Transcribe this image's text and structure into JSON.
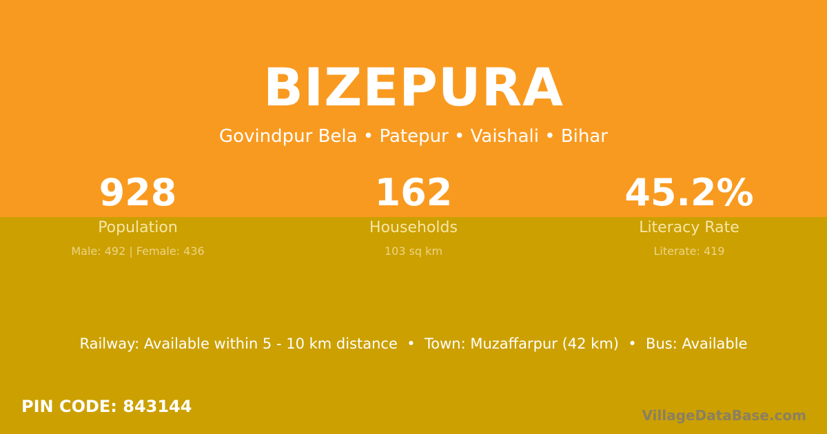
{
  "colors": {
    "top_bg": "#F99A20",
    "bottom_bg": "#CCA000"
  },
  "title": "BIZEPURA",
  "subtitle": "Govindpur Bela • Patepur • Vaishali • Bihar",
  "stats": [
    {
      "value": "928",
      "label": "Population",
      "detail": "Male: 492 | Female: 436"
    },
    {
      "value": "162",
      "label": "Households",
      "detail": "103 sq km"
    },
    {
      "value": "45.2%",
      "label": "Literacy Rate",
      "detail": "Literate: 419"
    }
  ],
  "info": "Railway: Available within 5 - 10 km distance  •  Town: Muzaffarpur (42 km)  •  Bus: Available",
  "pin": "PIN CODE: 843144",
  "watermark": "VillageDataBase.com"
}
